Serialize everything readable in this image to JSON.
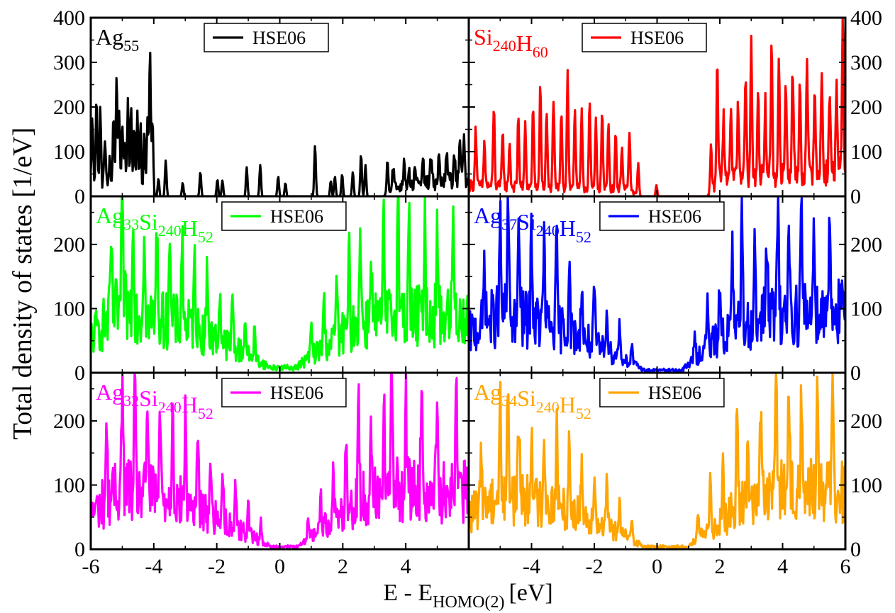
{
  "figure": {
    "ylabel": "Total density of states [1/eV]",
    "xlabel_main": "E - E",
    "xlabel_sub": "HOMO(2)",
    "xlabel_unit": "[eV]"
  },
  "chart_data": [
    {
      "type": "line",
      "panel": "top-left",
      "title": "Ag55",
      "title_parts": [
        {
          "text": "Ag",
          "sub": "55"
        }
      ],
      "legend": "HSE06",
      "color": "#000000",
      "xlim": [
        -6,
        6
      ],
      "ylim": [
        0,
        400
      ],
      "yticks": [
        0,
        100,
        200,
        300,
        400
      ],
      "peaks": [
        [
          -5.95,
          140
        ],
        [
          -5.82,
          195
        ],
        [
          -5.7,
          165
        ],
        [
          -5.55,
          110
        ],
        [
          -5.4,
          60
        ],
        [
          -5.28,
          160
        ],
        [
          -5.18,
          248
        ],
        [
          -5.1,
          180
        ],
        [
          -5.0,
          135
        ],
        [
          -4.92,
          110
        ],
        [
          -4.82,
          200
        ],
        [
          -4.72,
          190
        ],
        [
          -4.62,
          150
        ],
        [
          -4.52,
          180
        ],
        [
          -4.42,
          160
        ],
        [
          -4.3,
          140
        ],
        [
          -4.2,
          170
        ],
        [
          -4.12,
          325
        ],
        [
          -4.04,
          170
        ],
        [
          -3.85,
          40
        ],
        [
          -3.62,
          80
        ],
        [
          -3.08,
          30
        ],
        [
          -2.52,
          55
        ],
        [
          -1.98,
          38
        ],
        [
          -1.82,
          35
        ],
        [
          -1.05,
          65
        ],
        [
          -0.62,
          70
        ],
        [
          -0.05,
          45
        ],
        [
          0.18,
          30
        ],
        [
          1.12,
          115
        ],
        [
          1.62,
          35
        ],
        [
          1.75,
          45
        ],
        [
          1.98,
          50
        ],
        [
          2.32,
          55
        ],
        [
          2.58,
          95
        ],
        [
          2.72,
          70
        ],
        [
          3.42,
          75
        ],
        [
          3.6,
          50
        ],
        [
          3.95,
          65
        ],
        [
          4.1,
          40
        ],
        [
          4.3,
          45
        ],
        [
          4.55,
          50
        ],
        [
          4.8,
          60
        ],
        [
          5.05,
          55
        ],
        [
          5.3,
          60
        ],
        [
          5.55,
          65
        ],
        [
          5.72,
          75
        ],
        [
          5.85,
          100
        ]
      ],
      "background": [
        [
          -6.0,
          40
        ],
        [
          -4.0,
          0
        ],
        [
          3.3,
          0
        ],
        [
          3.6,
          25
        ],
        [
          6.0,
          50
        ]
      ]
    },
    {
      "type": "line",
      "panel": "top-right",
      "title": "Si240H60",
      "title_parts": [
        {
          "text": "Si",
          "sub": "240"
        },
        {
          "text": "H",
          "sub": "60"
        }
      ],
      "legend": "HSE06",
      "color": "#ff0000",
      "xlim": [
        -6,
        6
      ],
      "ylim": [
        0,
        400
      ],
      "yticks": [
        0,
        100,
        200,
        300,
        400
      ],
      "peaks": [
        [
          -5.78,
          130
        ],
        [
          -5.5,
          100
        ],
        [
          -5.2,
          180
        ],
        [
          -4.92,
          130
        ],
        [
          -4.7,
          100
        ],
        [
          -4.42,
          160
        ],
        [
          -4.2,
          140
        ],
        [
          -3.95,
          185
        ],
        [
          -3.72,
          235
        ],
        [
          -3.52,
          170
        ],
        [
          -3.3,
          200
        ],
        [
          -3.05,
          175
        ],
        [
          -2.85,
          265
        ],
        [
          -2.62,
          180
        ],
        [
          -2.4,
          175
        ],
        [
          -2.15,
          195
        ],
        [
          -1.95,
          150
        ],
        [
          -1.75,
          175
        ],
        [
          -1.55,
          150
        ],
        [
          -1.32,
          130
        ],
        [
          -1.12,
          100
        ],
        [
          -0.88,
          135
        ],
        [
          -0.6,
          70
        ],
        [
          -0.02,
          25
        ],
        [
          1.72,
          105
        ],
        [
          1.92,
          270
        ],
        [
          2.12,
          135
        ],
        [
          2.35,
          160
        ],
        [
          2.58,
          160
        ],
        [
          2.82,
          230
        ],
        [
          3.0,
          300
        ],
        [
          3.22,
          200
        ],
        [
          3.45,
          160
        ],
        [
          3.65,
          300
        ],
        [
          3.88,
          240
        ],
        [
          4.1,
          220
        ],
        [
          4.32,
          250
        ],
        [
          4.55,
          210
        ],
        [
          4.78,
          240
        ],
        [
          5.02,
          200
        ],
        [
          5.25,
          235
        ],
        [
          5.5,
          190
        ],
        [
          5.72,
          220
        ],
        [
          5.92,
          345
        ]
      ],
      "background": [
        [
          -6.0,
          30
        ],
        [
          -1.0,
          20
        ],
        [
          -0.5,
          0
        ],
        [
          1.6,
          0
        ],
        [
          2.0,
          50
        ],
        [
          6.0,
          70
        ]
      ]
    },
    {
      "type": "line",
      "panel": "middle-left",
      "title": "Ag33Si240H52",
      "title_parts": [
        {
          "text": "Ag",
          "sub": "33"
        },
        {
          "text": "Si",
          "sub": "240"
        },
        {
          "text": "H",
          "sub": "52"
        }
      ],
      "legend": "HSE06",
      "color": "#00ff00",
      "xlim": [
        -6,
        6
      ],
      "ylim": [
        0,
        275
      ],
      "yticks": [
        0,
        100,
        200
      ],
      "peaks": [
        [
          -5.35,
          120
        ],
        [
          -5.0,
          195
        ],
        [
          -4.65,
          150
        ],
        [
          -4.3,
          150
        ],
        [
          -3.9,
          150
        ],
        [
          -3.5,
          145
        ],
        [
          -3.1,
          145
        ],
        [
          -2.7,
          115
        ],
        [
          -2.3,
          110
        ],
        [
          -1.9,
          85
        ],
        [
          -1.5,
          80
        ],
        [
          -1.1,
          60
        ],
        [
          -0.8,
          45
        ],
        [
          1.0,
          50
        ],
        [
          1.4,
          80
        ],
        [
          1.8,
          100
        ],
        [
          2.2,
          120
        ],
        [
          2.55,
          165
        ],
        [
          2.9,
          130
        ],
        [
          3.3,
          150
        ],
        [
          3.75,
          235
        ],
        [
          4.1,
          170
        ],
        [
          4.6,
          150
        ],
        [
          5.0,
          150
        ],
        [
          5.5,
          160
        ]
      ],
      "background": [
        [
          -6.0,
          70
        ],
        [
          -5.0,
          130
        ],
        [
          -4.0,
          105
        ],
        [
          -3.0,
          95
        ],
        [
          -2.0,
          65
        ],
        [
          -1.0,
          35
        ],
        [
          -0.3,
          10
        ],
        [
          0.5,
          10
        ],
        [
          1.5,
          55
        ],
        [
          2.5,
          95
        ],
        [
          3.5,
          110
        ],
        [
          4.5,
          110
        ],
        [
          6.0,
          110
        ]
      ]
    },
    {
      "type": "line",
      "panel": "middle-right",
      "title": "Ag37Si240H52",
      "title_parts": [
        {
          "text": "Ag",
          "sub": "37"
        },
        {
          "text": "Si",
          "sub": "240"
        },
        {
          "text": "H",
          "sub": "52"
        }
      ],
      "legend": "HSE06",
      "color": "#0000ff",
      "xlim": [
        -6,
        6
      ],
      "ylim": [
        0,
        275
      ],
      "yticks": [
        0,
        100,
        200
      ],
      "peaks": [
        [
          -5.5,
          110
        ],
        [
          -5.0,
          140
        ],
        [
          -4.75,
          200
        ],
        [
          -4.4,
          150
        ],
        [
          -4.0,
          155
        ],
        [
          -3.6,
          140
        ],
        [
          -3.2,
          130
        ],
        [
          -2.8,
          120
        ],
        [
          -2.4,
          95
        ],
        [
          -2.0,
          90
        ],
        [
          -1.6,
          75
        ],
        [
          -1.2,
          55
        ],
        [
          -0.8,
          30
        ],
        [
          1.2,
          40
        ],
        [
          1.6,
          70
        ],
        [
          2.0,
          95
        ],
        [
          2.4,
          120
        ],
        [
          2.7,
          160
        ],
        [
          3.1,
          120
        ],
        [
          3.5,
          140
        ],
        [
          3.85,
          195
        ],
        [
          4.2,
          155
        ],
        [
          4.6,
          165
        ],
        [
          5.0,
          160
        ],
        [
          5.5,
          185
        ]
      ],
      "background": [
        [
          -6.0,
          75
        ],
        [
          -5.0,
          115
        ],
        [
          -4.0,
          100
        ],
        [
          -3.0,
          85
        ],
        [
          -2.0,
          55
        ],
        [
          -1.0,
          25
        ],
        [
          -0.4,
          5
        ],
        [
          0.8,
          5
        ],
        [
          1.5,
          45
        ],
        [
          2.5,
          90
        ],
        [
          3.5,
          110
        ],
        [
          4.5,
          115
        ],
        [
          6.0,
          120
        ]
      ]
    },
    {
      "type": "line",
      "panel": "bottom-left",
      "title": "Ag32Si240H52",
      "title_parts": [
        {
          "text": "Ag",
          "sub": "32"
        },
        {
          "text": "Si",
          "sub": "240"
        },
        {
          "text": "H",
          "sub": "52"
        }
      ],
      "legend": "HSE06",
      "color": "#ff00ff",
      "xlim": [
        -6,
        6
      ],
      "ylim": [
        0,
        275
      ],
      "yticks": [
        0,
        100,
        200
      ],
      "peaks": [
        [
          -5.5,
          120
        ],
        [
          -5.0,
          185
        ],
        [
          -4.6,
          145
        ],
        [
          -4.2,
          155
        ],
        [
          -3.8,
          125
        ],
        [
          -3.4,
          170
        ],
        [
          -3.0,
          130
        ],
        [
          -2.6,
          120
        ],
        [
          -2.2,
          100
        ],
        [
          -1.8,
          80
        ],
        [
          -1.4,
          70
        ],
        [
          -1.0,
          50
        ],
        [
          -0.6,
          30
        ],
        [
          0.9,
          40
        ],
        [
          1.3,
          60
        ],
        [
          1.7,
          90
        ],
        [
          2.1,
          115
        ],
        [
          2.5,
          150
        ],
        [
          2.9,
          125
        ],
        [
          3.3,
          150
        ],
        [
          3.55,
          215
        ],
        [
          4.0,
          165
        ],
        [
          4.5,
          160
        ],
        [
          5.0,
          180
        ],
        [
          5.6,
          160
        ]
      ],
      "background": [
        [
          -6.0,
          70
        ],
        [
          -5.0,
          120
        ],
        [
          -4.0,
          105
        ],
        [
          -3.0,
          90
        ],
        [
          -2.0,
          60
        ],
        [
          -1.0,
          30
        ],
        [
          -0.3,
          5
        ],
        [
          0.6,
          5
        ],
        [
          1.5,
          50
        ],
        [
          2.5,
          95
        ],
        [
          3.5,
          115
        ],
        [
          4.5,
          115
        ],
        [
          6.0,
          110
        ]
      ]
    },
    {
      "type": "line",
      "panel": "bottom-right",
      "title": "Ag34Si240H52",
      "title_parts": [
        {
          "text": "Ag",
          "sub": "34"
        },
        {
          "text": "Si",
          "sub": "240"
        },
        {
          "text": "H",
          "sub": "52"
        }
      ],
      "legend": "HSE06",
      "color": "#ffa500",
      "xlim": [
        -6,
        6
      ],
      "ylim": [
        0,
        275
      ],
      "yticks": [
        0,
        100,
        200
      ],
      "peaks": [
        [
          -5.6,
          105
        ],
        [
          -5.0,
          145
        ],
        [
          -4.75,
          185
        ],
        [
          -4.4,
          140
        ],
        [
          -4.0,
          130
        ],
        [
          -3.6,
          120
        ],
        [
          -3.2,
          125
        ],
        [
          -2.8,
          115
        ],
        [
          -2.4,
          100
        ],
        [
          -2.0,
          85
        ],
        [
          -1.6,
          70
        ],
        [
          -1.2,
          55
        ],
        [
          -0.8,
          35
        ],
        [
          1.3,
          45
        ],
        [
          1.7,
          75
        ],
        [
          2.1,
          100
        ],
        [
          2.55,
          175
        ],
        [
          2.9,
          120
        ],
        [
          3.3,
          150
        ],
        [
          3.8,
          215
        ],
        [
          4.2,
          165
        ],
        [
          4.6,
          150
        ],
        [
          5.1,
          175
        ],
        [
          5.6,
          180
        ]
      ],
      "background": [
        [
          -6.0,
          65
        ],
        [
          -5.0,
          110
        ],
        [
          -4.0,
          95
        ],
        [
          -3.0,
          80
        ],
        [
          -2.0,
          55
        ],
        [
          -1.0,
          25
        ],
        [
          -0.4,
          5
        ],
        [
          1.0,
          5
        ],
        [
          1.8,
          45
        ],
        [
          2.8,
          90
        ],
        [
          3.8,
          110
        ],
        [
          4.8,
          115
        ],
        [
          6.0,
          115
        ]
      ]
    }
  ]
}
